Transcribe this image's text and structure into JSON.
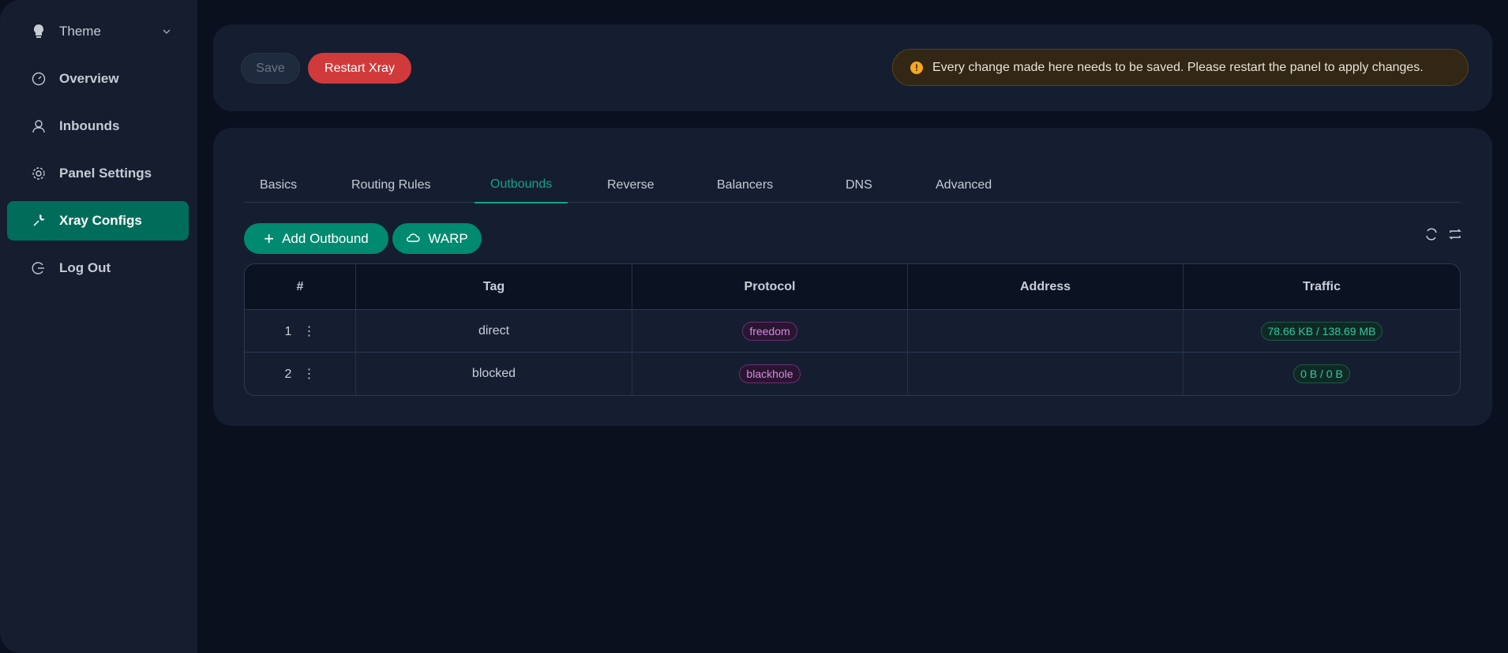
{
  "sidebar": {
    "theme": "Theme",
    "items": [
      {
        "label": "Overview",
        "icon": "dashboard-icon"
      },
      {
        "label": "Inbounds",
        "icon": "user-icon"
      },
      {
        "label": "Panel Settings",
        "icon": "gear-icon"
      },
      {
        "label": "Xray Configs",
        "icon": "tool-icon",
        "active": true
      },
      {
        "label": "Log Out",
        "icon": "logout-icon"
      }
    ]
  },
  "toolbar": {
    "save": "Save",
    "restart": "Restart Xray",
    "alert": "Every change made here needs to be saved. Please restart the panel to apply changes."
  },
  "tabs": [
    "Basics",
    "Routing Rules",
    "Outbounds",
    "Reverse",
    "Balancers",
    "DNS",
    "Advanced"
  ],
  "active_tab": "Outbounds",
  "actions": {
    "add": "Add Outbound",
    "warp": "WARP"
  },
  "table": {
    "headers": [
      "#",
      "Tag",
      "Protocol",
      "Address",
      "Traffic"
    ],
    "rows": [
      {
        "num": "1",
        "tag": "direct",
        "protocol": "freedom",
        "address": "",
        "traffic": "78.66 KB / 138.69 MB"
      },
      {
        "num": "2",
        "tag": "blocked",
        "protocol": "blackhole",
        "address": "",
        "traffic": "0 B / 0 B"
      }
    ]
  },
  "colors": {
    "accent": "#008a70",
    "danger": "#d13a3a",
    "warning": "#f5a623"
  }
}
